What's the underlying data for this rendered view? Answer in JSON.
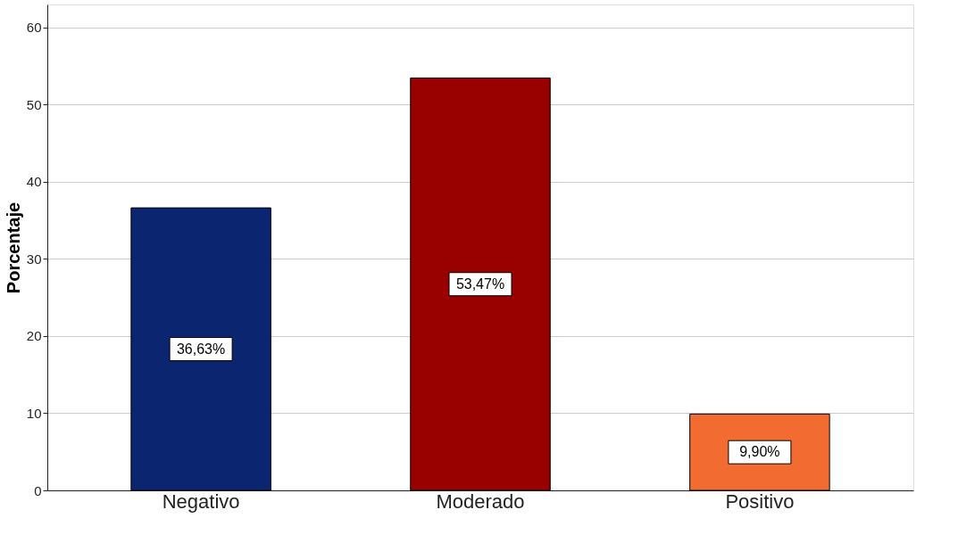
{
  "chart_data": {
    "type": "bar",
    "ylabel": "Porcentaje",
    "categories": [
      "Negativo",
      "Moderado",
      "Positivo"
    ],
    "values": [
      36.63,
      53.47,
      9.9
    ],
    "colors": [
      "#0c2570",
      "#990000",
      "#f26b30"
    ],
    "value_labels": [
      "36,63%",
      "53,47%",
      "9,90%"
    ],
    "ylim": [
      0,
      63
    ],
    "yticks": [
      0,
      10,
      20,
      30,
      40,
      50,
      60
    ],
    "grid": "y"
  }
}
